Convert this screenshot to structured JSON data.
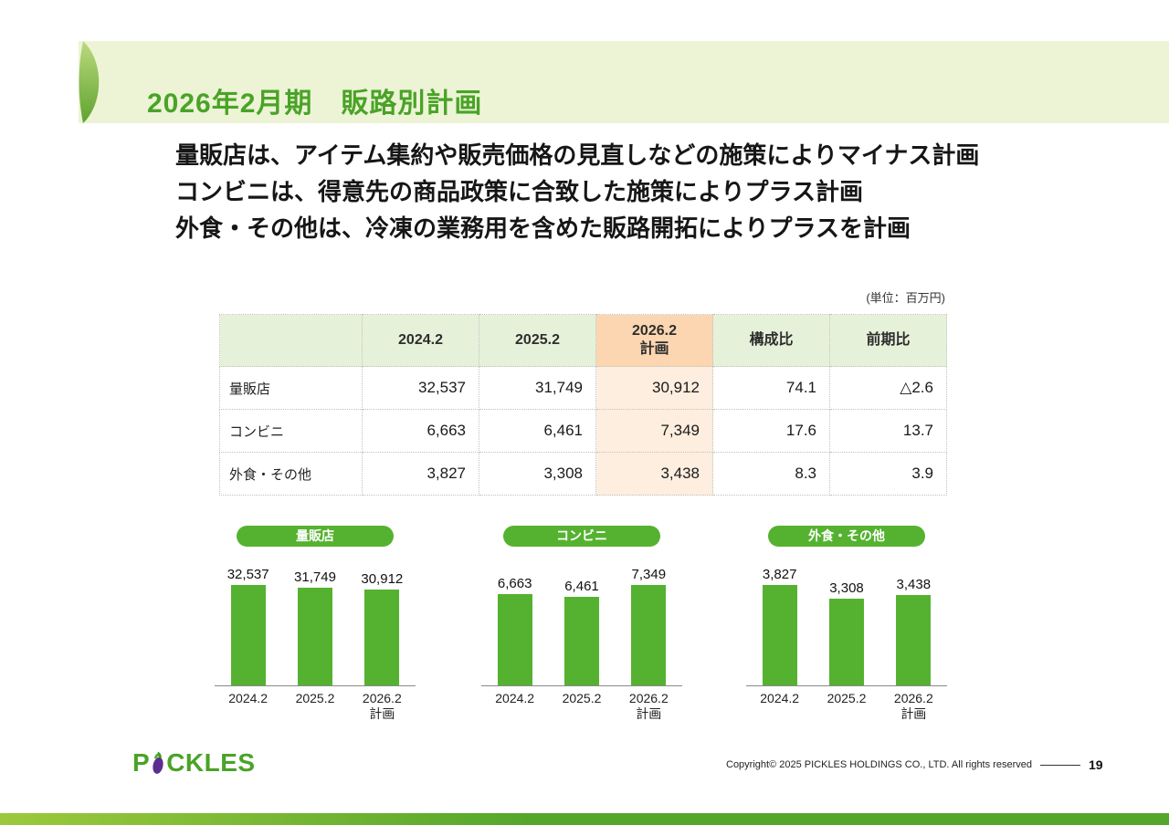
{
  "slide": {
    "title": "2026年2月期　販路別計画",
    "bullets": [
      "量販店は、アイテム集約や販売価格の見直しなどの施策によりマイナス計画",
      "コンビニは、得意先の商品政策に合致した施策によりプラス計画",
      "外食・その他は、冷凍の業務用を含めた販路開拓によりプラスを計画"
    ],
    "unit_note": "(単位：百万円)",
    "colors": {
      "accent_green": "#55b230",
      "title_green": "#4aa327",
      "header_band": "#edf4d6",
      "table_header_bg": "#e6f1da",
      "plan_header_bg": "#fbd6b0",
      "plan_cell_bg": "#fdeee0"
    }
  },
  "table": {
    "header": [
      "",
      "2024.2",
      "2025.2",
      "2026.2\n計画",
      "構成比",
      "前期比"
    ],
    "rows": [
      [
        "量販店",
        "32,537",
        "31,749",
        "30,912",
        "74.1",
        "△2.6"
      ],
      [
        "コンビニ",
        "6,663",
        "6,461",
        "7,349",
        "17.6",
        "13.7"
      ],
      [
        "外食・その他",
        "3,827",
        "3,308",
        "3,438",
        "8.3",
        "3.9"
      ]
    ]
  },
  "chart_data": [
    {
      "type": "bar",
      "title": "量販店",
      "categories": [
        "2024.2",
        "2025.2",
        "2026.2\n計画"
      ],
      "values": [
        32537,
        31749,
        30912
      ],
      "value_labels": [
        "32,537",
        "31,749",
        "30,912"
      ],
      "ylim": [
        0,
        32537
      ],
      "bar_color": "#55b230",
      "grid": false,
      "legend": "none"
    },
    {
      "type": "bar",
      "title": "コンビニ",
      "categories": [
        "2024.2",
        "2025.2",
        "2026.2\n計画"
      ],
      "values": [
        6663,
        6461,
        7349
      ],
      "value_labels": [
        "6,663",
        "6,461",
        "7,349"
      ],
      "ylim": [
        0,
        7349
      ],
      "bar_color": "#55b230",
      "grid": false,
      "legend": "none"
    },
    {
      "type": "bar",
      "title": "外食・その他",
      "categories": [
        "2024.2",
        "2025.2",
        "2026.2\n計画"
      ],
      "values": [
        3827,
        3308,
        3438
      ],
      "value_labels": [
        "3,827",
        "3,308",
        "3,438"
      ],
      "ylim": [
        0,
        3827
      ],
      "bar_color": "#55b230",
      "grid": false,
      "legend": "none"
    }
  ],
  "footer": {
    "logo_left": "P",
    "logo_right": "CKLES",
    "copyright": "Copyright© 2025 PICKLES HOLDINGS CO., LTD. All rights reserved",
    "page_number": "19"
  }
}
